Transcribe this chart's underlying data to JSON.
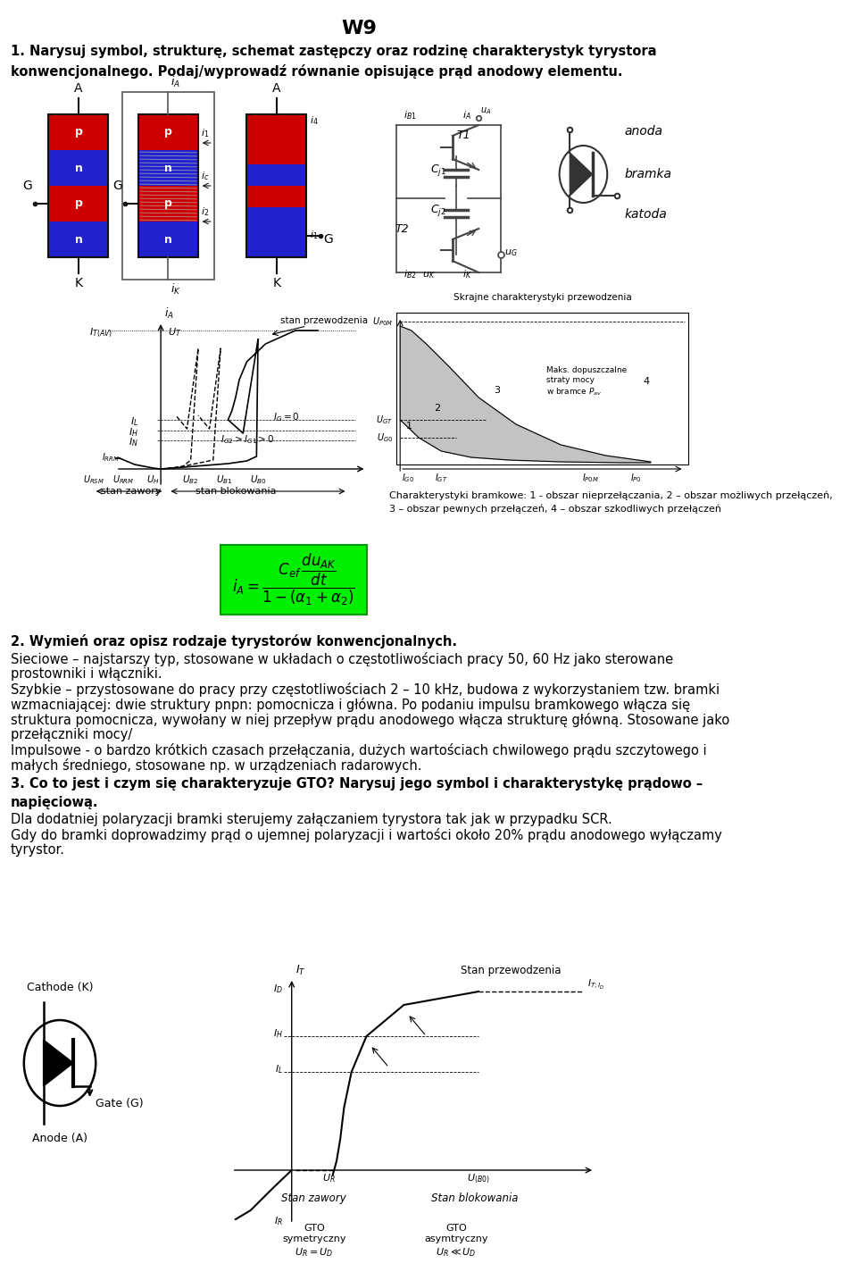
{
  "title": "W9",
  "bg_color": "#ffffff",
  "text_color": "#000000",
  "title_fontsize": 16,
  "body_fontsize": 10.5,
  "section1_header": "1. Narysuj symbol, strukturę, schemat zastępczy oraz rodzinę charakterystyk tyrystora\nkonwencjonalnego. Podaj/wyprowadź równanie opisujące prąd anodowy elementu.",
  "section2_header": "2. Wymień oraz opisz rodzaje tyrystorów konwencjonalnych.",
  "section2_text_lines": [
    "Sieciowe – najstarszy typ, stosowane w układach o częstotliwościach pracy 50, 60 Hz jako sterowane",
    "prostowniki i włączniki.",
    "Szybkie – przystosowane do pracy przy częstotliwościach 2 – 10 kHz, budowa z wykorzystaniem tzw. bramki",
    "wzmacniającej: dwie struktury pnpn: pomocnicza i główna. Po podaniu impulsu bramkowego włącza się",
    "struktura pomocnicza, wywołany w niej przepływ prądu anodowego włącza strukturę główną. Stosowane jako",
    "przełączniki mocy/",
    "Impulsowe - o bardzo krótkich czasach przełączania, dużych wartościach chwilowego prądu szczytowego i",
    "małych średniego, stosowane np. w urządzeniach radarowych."
  ],
  "section3_header": "3. Co to jest i czym się charakteryzuje GTO? Narysuj jego symbol i charakterystykę prądowo –\nnapięciową.",
  "section3_text_lines": [
    "Dla dodatniej polaryzacji bramki sterujemy załączaniem tyrystora tak jak w przypadku SCR.",
    "Gdy do bramki doprowadzimy prąd o ujemnej polaryzacji i wartości około 20% prądu anodowego wyłączamy",
    "tyrystor."
  ],
  "green_box_color": "#00ee00"
}
